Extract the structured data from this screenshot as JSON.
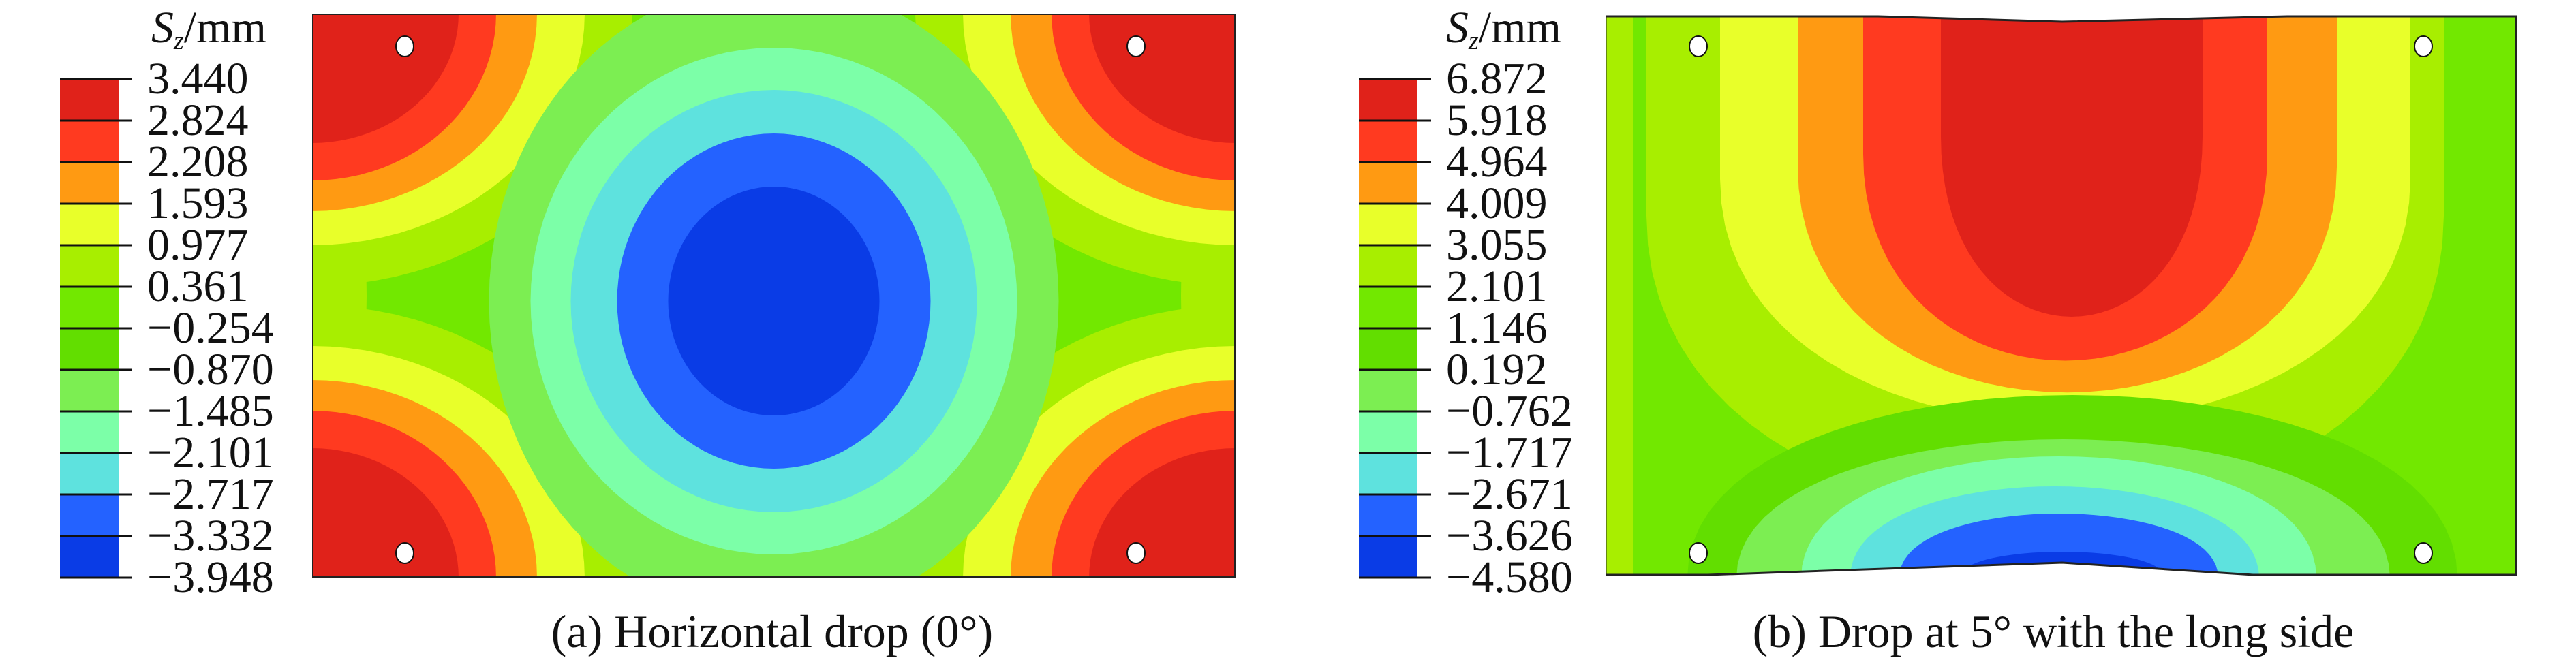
{
  "chart_data": [
    {
      "type": "heatmap",
      "id": "a",
      "title": "(a) Horizontal drop (0°)",
      "colorbar_title": {
        "symbol": "S",
        "subscript": "z",
        "unit": "/mm"
      },
      "levels": [
        "3.440",
        "2.824",
        "2.208",
        "1.593",
        "0.977",
        "0.361",
        "−0.254",
        "−0.870",
        "−1.485",
        "−2.101",
        "−2.717",
        "−3.332",
        "−3.948"
      ],
      "range": [
        -3.948,
        3.44
      ],
      "pattern": "Minimum (blue) at the plate center, maxima (red) at the four corners"
    },
    {
      "type": "heatmap",
      "id": "b",
      "title": "(b) Drop at 5° with the long side",
      "colorbar_title": {
        "symbol": "S",
        "subscript": "z",
        "unit": "/mm"
      },
      "levels": [
        "6.872",
        "5.918",
        "4.964",
        "4.009",
        "3.055",
        "2.101",
        "1.146",
        "0.192",
        "−0.762",
        "−1.717",
        "−2.671",
        "−3.626",
        "−4.580"
      ],
      "range": [
        -4.58,
        6.872
      ],
      "pattern": "Maximum (red) in the upper center, minimum (blue) at the lower center edge"
    }
  ],
  "band_colors": [
    "#e0221a",
    "#ff3a20",
    "#ff9a12",
    "#e8ff2a",
    "#a8ee00",
    "#72e800",
    "#62de00",
    "#7cee52",
    "#7cffa8",
    "#5ee2de",
    "#2462ff",
    "#0a3ce6"
  ],
  "hole_color": "#ffffff"
}
